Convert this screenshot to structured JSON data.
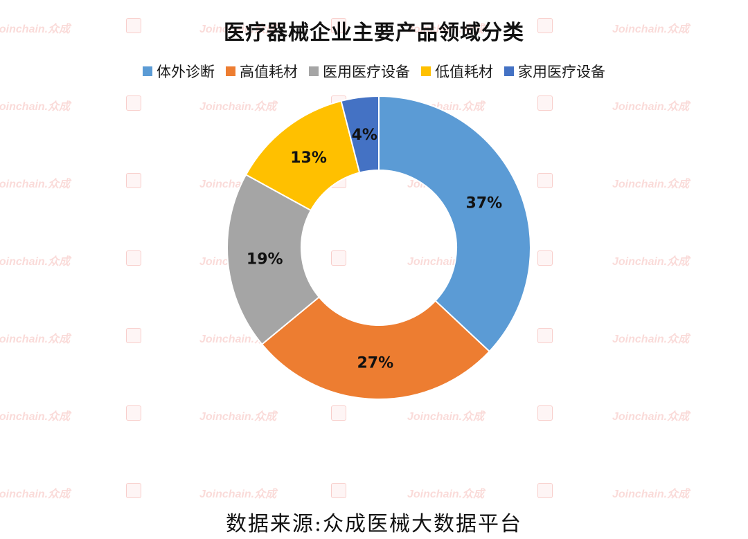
{
  "chart_data": {
    "type": "pie",
    "title": "医疗器械企业主要产品领域分类",
    "categories": [
      "体外诊断",
      "高值耗材",
      "医用医疗设备",
      "低值耗材",
      "家用医疗设备"
    ],
    "values": [
      37,
      27,
      19,
      13,
      4
    ],
    "value_labels": [
      "37%",
      "27%",
      "19%",
      "13%",
      "4%"
    ],
    "colors": [
      "#5B9BD5",
      "#ED7D31",
      "#A5A5A5",
      "#FFC000",
      "#4472C4"
    ],
    "donut": true,
    "legend_position": "top"
  },
  "watermark": {
    "text": "Joinchain.众成"
  },
  "source_note": "数据来源:众成医械大数据平台"
}
